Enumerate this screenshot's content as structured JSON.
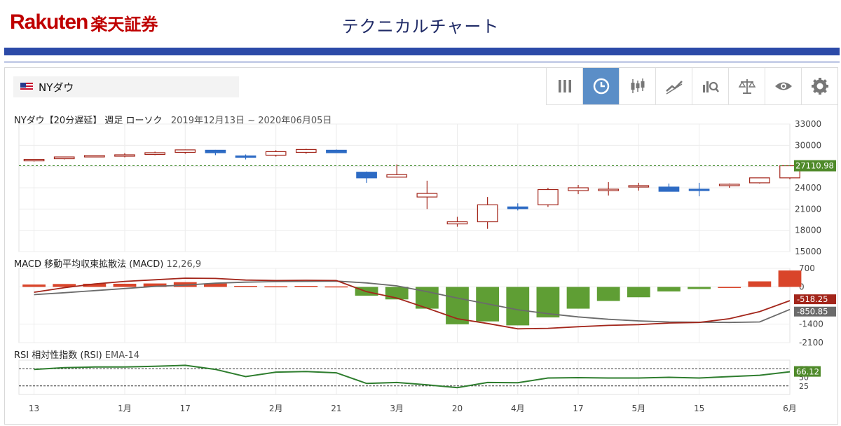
{
  "brand": {
    "en": "Rakuten",
    "jp": "楽天証券"
  },
  "page_title": "テクニカルチャート",
  "symbol": {
    "name": "NYダウ",
    "flag": "us-flag-icon"
  },
  "toolbar": {
    "icons": [
      "bars-icon",
      "clock-icon",
      "candlestick-icon",
      "trend-icon",
      "search-chart-icon",
      "balance-icon",
      "eye-icon",
      "gear-icon"
    ],
    "active": "clock-icon",
    "active_color": "#5b8ec7"
  },
  "price_header": {
    "title": "NYダウ【20分遅延】 週足 ローソク",
    "range": "2019年12月13日 ~ 2020年06月05日"
  },
  "macd_header": {
    "title": "MACD 移動平均収束拡散法 (MACD)",
    "params": "12,26,9"
  },
  "rsi_header": {
    "title": "RSI 相対性指数 (RSI)",
    "params": "EMA-14"
  },
  "colors": {
    "up": "#a3261b",
    "down": "#2d6bc4",
    "macd_line": "#a3261b",
    "signal_line": "#6b6b6b",
    "hist_pos": "#d9452a",
    "hist_neg": "#5f9e34",
    "rsi": "#2e7d2e",
    "last_price_bg": "#4f8a2a"
  },
  "chart_data": [
    {
      "type": "candlestick",
      "x": [
        "2019-12-13",
        "2019-12-20",
        "2019-12-27",
        "2020-01-03",
        "2020-01-10",
        "2020-01-17",
        "2020-01-24",
        "2020-01-31",
        "2020-02-07",
        "2020-02-14",
        "2020-02-21",
        "2020-02-28",
        "2020-03-06",
        "2020-03-13",
        "2020-03-20",
        "2020-03-27",
        "2020-04-03",
        "2020-04-10",
        "2020-04-17",
        "2020-04-24",
        "2020-05-01",
        "2020-05-08",
        "2020-05-15",
        "2020-05-22",
        "2020-05-29",
        "2020-06-05"
      ],
      "open": [
        27800,
        28100,
        28450,
        28600,
        28700,
        29000,
        29300,
        28500,
        28600,
        29000,
        29300,
        26200,
        25500,
        22700,
        18900,
        19200,
        21300,
        21600,
        23600,
        23600,
        24300,
        24100,
        23800,
        24300,
        24700,
        25400
      ],
      "high": [
        28000,
        28300,
        28550,
        28900,
        29100,
        29400,
        29350,
        28700,
        29300,
        29500,
        29400,
        26300,
        27300,
        25000,
        19900,
        22700,
        21800,
        24000,
        24400,
        24800,
        24700,
        24600,
        24700,
        24600,
        25400,
        27100
      ],
      "low": [
        27700,
        28000,
        28350,
        28300,
        28600,
        28800,
        28600,
        28000,
        28400,
        28800,
        28900,
        24700,
        25500,
        21000,
        18500,
        18200,
        20800,
        21300,
        23100,
        22900,
        23600,
        23600,
        22800,
        24000,
        24600,
        25200
      ],
      "close": [
        28000,
        28350,
        28550,
        28650,
        28950,
        29350,
        28950,
        28300,
        29100,
        29400,
        28950,
        25400,
        25850,
        23200,
        19200,
        21600,
        21050,
        23750,
        24000,
        23800,
        24300,
        23500,
        23700,
        24500,
        25400,
        27110
      ],
      "ylim": [
        15000,
        33000
      ],
      "yticks": [
        "33000",
        "30000",
        "27000",
        "24000",
        "21000",
        "18000",
        "15000"
      ],
      "last_price": "27110.98",
      "last_price_value": 27110.98
    },
    {
      "type": "macd",
      "macd": [
        -200,
        -30,
        110,
        210,
        270,
        330,
        320,
        260,
        240,
        250,
        240,
        -180,
        -420,
        -800,
        -1200,
        -1380,
        -1580,
        -1560,
        -1500,
        -1450,
        -1420,
        -1360,
        -1340,
        -1200,
        -930,
        -518.25
      ],
      "signal": [
        -290,
        -220,
        -140,
        -60,
        20,
        70,
        140,
        180,
        200,
        210,
        220,
        150,
        40,
        -180,
        -420,
        -640,
        -860,
        -1010,
        -1130,
        -1220,
        -1280,
        -1320,
        -1330,
        -1340,
        -1320,
        -850.85
      ],
      "histogram": [
        90,
        110,
        120,
        120,
        130,
        180,
        130,
        40,
        25,
        40,
        20,
        -330,
        -470,
        -820,
        -1410,
        -1300,
        -1450,
        -1150,
        -820,
        -530,
        -390,
        -170,
        -80,
        0,
        210,
        620
      ],
      "ylim": [
        -2100,
        700
      ],
      "yticks": [
        "700",
        "0",
        "-1400",
        "-2100"
      ],
      "macd_last": "-518.25",
      "signal_last": "-850.85"
    },
    {
      "type": "rsi",
      "values": [
        73,
        78,
        80,
        80,
        82,
        85,
        73,
        52,
        65,
        67,
        63,
        32,
        35,
        28,
        20,
        35,
        34,
        48,
        49,
        48,
        48,
        50,
        48,
        52,
        56,
        66.12
      ],
      "ylim": [
        0,
        100
      ],
      "yticks": [
        "75",
        "50",
        "25"
      ],
      "levels": [
        75,
        25
      ],
      "last": "66.12"
    }
  ],
  "x_ticks": [
    {
      "label": "13",
      "index": 0
    },
    {
      "label": "1月",
      "index": 3
    },
    {
      "label": "17",
      "index": 5
    },
    {
      "label": "2月",
      "index": 8
    },
    {
      "label": "21",
      "index": 10
    },
    {
      "label": "3月",
      "index": 12
    },
    {
      "label": "20",
      "index": 14
    },
    {
      "label": "4月",
      "index": 16
    },
    {
      "label": "17",
      "index": 18
    },
    {
      "label": "5月",
      "index": 20
    },
    {
      "label": "15",
      "index": 22
    },
    {
      "label": "6月",
      "index": 25
    }
  ]
}
